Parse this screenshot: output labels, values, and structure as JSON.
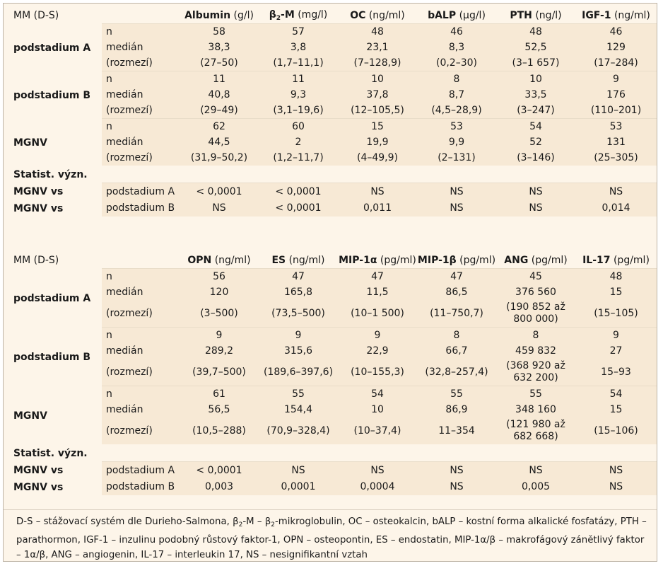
{
  "table1": {
    "corner": "MM (D-S)",
    "headers": [
      {
        "name": "Albumin",
        "unit": "(g/l)"
      },
      {
        "name": "β2-M",
        "unit": "(mg/l)"
      },
      {
        "name": "OC",
        "unit": "(ng/ml)"
      },
      {
        "name": "bALP",
        "unit": "(μg/l)"
      },
      {
        "name": "PTH",
        "unit": "(ng/l)"
      },
      {
        "name": "IGF-1",
        "unit": "(ng/ml)"
      }
    ],
    "groups": [
      {
        "name": "podstadium A",
        "rows": [
          {
            "label": "n",
            "values": [
              "58",
              "57",
              "48",
              "46",
              "48",
              "46"
            ]
          },
          {
            "label": "medián",
            "values": [
              "38,3",
              "3,8",
              "23,1",
              "8,3",
              "52,5",
              "129"
            ]
          },
          {
            "label": "(rozmezí)",
            "values": [
              "(27–50)",
              "(1,7–11,1)",
              "(7–128,9)",
              "(0,2–30)",
              "(3–1 657)",
              "(17–284)"
            ]
          }
        ]
      },
      {
        "name": "podstadium B",
        "rows": [
          {
            "label": "n",
            "values": [
              "11",
              "11",
              "10",
              "8",
              "10",
              "9"
            ]
          },
          {
            "label": "medián",
            "values": [
              "40,8",
              "9,3",
              "37,8",
              "8,7",
              "33,5",
              "176"
            ]
          },
          {
            "label": "(rozmezí)",
            "values": [
              "(29–49)",
              "(3,1–19,6)",
              "(12–105,5)",
              "(4,5–28,9)",
              "(3–247)",
              "(110–201)"
            ]
          }
        ]
      },
      {
        "name": "MGNV",
        "rows": [
          {
            "label": "n",
            "values": [
              "62",
              "60",
              "15",
              "53",
              "54",
              "53"
            ]
          },
          {
            "label": "medián",
            "values": [
              "44,5",
              "2",
              "19,9",
              "9,9",
              "52",
              "131"
            ]
          },
          {
            "label": "(rozmezí)",
            "values": [
              "(31,9–50,2)",
              "(1,2–11,7)",
              "(4–49,9)",
              "(2–131)",
              "(3–146)",
              "(25–305)"
            ]
          }
        ]
      }
    ],
    "stat_title": "Statist. význ.",
    "stat_rows": [
      {
        "group": "MGNV vs",
        "label": "podstadium A",
        "values": [
          "< 0,0001",
          "< 0,0001",
          "NS",
          "NS",
          "NS",
          "NS"
        ]
      },
      {
        "group": "MGNV vs",
        "label": "podstadium B",
        "values": [
          "NS",
          "< 0,0001",
          "0,011",
          "NS",
          "NS",
          "0,014"
        ]
      }
    ]
  },
  "table2": {
    "corner": "MM (D-S)",
    "headers": [
      {
        "name": "OPN",
        "unit": "(ng/ml)"
      },
      {
        "name": "ES",
        "unit": "(ng/ml)"
      },
      {
        "name": "MIP-1α",
        "unit": "(pg/ml)"
      },
      {
        "name": "MIP-1β",
        "unit": "(pg/ml)"
      },
      {
        "name": "ANG",
        "unit": "(pg/ml)"
      },
      {
        "name": "IL-17",
        "unit": "(pg/ml)"
      }
    ],
    "groups": [
      {
        "name": "podstadium A",
        "rows": [
          {
            "label": "n",
            "values": [
              "56",
              "47",
              "47",
              "47",
              "45",
              "48"
            ]
          },
          {
            "label": "medián",
            "values": [
              "120",
              "165,8",
              "11,5",
              "86,5",
              "376 560",
              "15"
            ]
          },
          {
            "label": "(rozmezí)",
            "values": [
              "(3–500)",
              "(73,5–500)",
              "(10–1 500)",
              "(11–750,7)",
              "(190 852 až 800 000)",
              "(15–105)"
            ]
          }
        ]
      },
      {
        "name": "podstadium B",
        "rows": [
          {
            "label": "n",
            "values": [
              "9",
              "9",
              "9",
              "8",
              "8",
              "9"
            ]
          },
          {
            "label": "medián",
            "values": [
              "289,2",
              "315,6",
              "22,9",
              "66,7",
              "459 832",
              "27"
            ]
          },
          {
            "label": "(rozmezí)",
            "values": [
              "(39,7–500)",
              "(189,6–397,6)",
              "(10–155,3)",
              "(32,8–257,4)",
              "(368 920 až 632 200)",
              "15–93"
            ]
          }
        ]
      },
      {
        "name": "MGNV",
        "rows": [
          {
            "label": "n",
            "values": [
              "61",
              "55",
              "54",
              "55",
              "55",
              "54"
            ]
          },
          {
            "label": "medián",
            "values": [
              "56,5",
              "154,4",
              "10",
              "86,9",
              "348 160",
              "15"
            ]
          },
          {
            "label": "(rozmezí)",
            "values": [
              "(10,5–288)",
              "(70,9–328,4)",
              "(10–37,4)",
              "11–354",
              "(121 980 až 682 668)",
              "(15–106)"
            ]
          }
        ]
      }
    ],
    "stat_title": "Statist. význ.",
    "stat_rows": [
      {
        "group": "MGNV vs",
        "label": "podstadium A",
        "values": [
          "< 0,0001",
          "NS",
          "NS",
          "NS",
          "NS",
          "NS"
        ]
      },
      {
        "group": "MGNV vs",
        "label": "podstadium B",
        "values": [
          "0,003",
          "0,0001",
          "0,0004",
          "NS",
          "0,005",
          "NS"
        ]
      }
    ]
  },
  "footnote": "D-S – stážovací systém dle Durieho-Salmona, β2-M – β2-mikroglobulin, OC – osteokalcin, bALP – kostní forma alkalické fosfatázy, PTH – parathormon, IGF-1 – inzulinu podobný růstový faktor-1, OPN – osteopontin, ES – endostatin, MIP-1α/β – makrofágový zánětlivý faktor – 1α/β, ANG – angiogenin, IL-17 – interleukin 17, NS – nesignifikantní vztah"
}
